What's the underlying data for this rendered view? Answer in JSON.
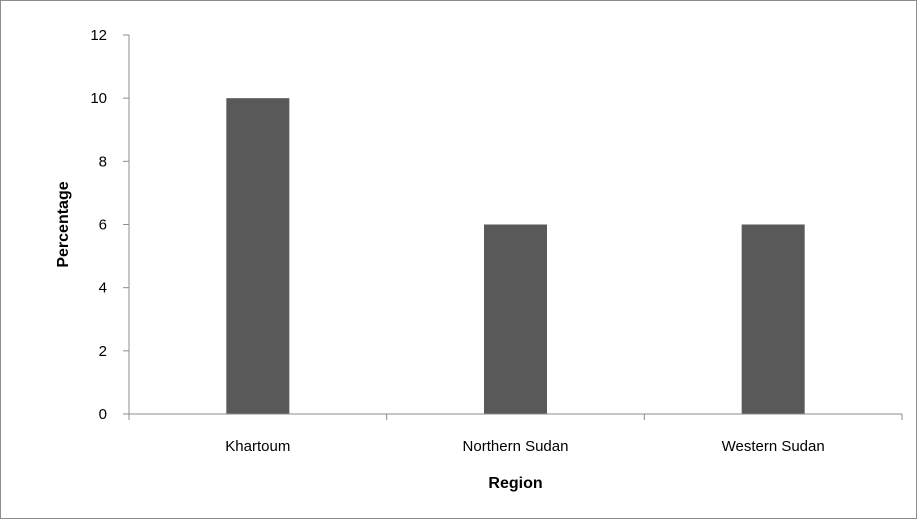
{
  "chart_data": {
    "type": "bar",
    "categories": [
      "Khartoum",
      "Northern Sudan",
      "Western Sudan"
    ],
    "values": [
      10,
      6,
      6
    ],
    "title": "",
    "xlabel": "Region",
    "ylabel": "Percentage",
    "ylim": [
      0,
      12
    ],
    "yticks": [
      "0",
      "2",
      "4",
      "6",
      "8",
      "10",
      "12"
    ],
    "grid": false,
    "legend": "none",
    "bar_color": "#595959",
    "axis_color": "#8c8c8c"
  }
}
